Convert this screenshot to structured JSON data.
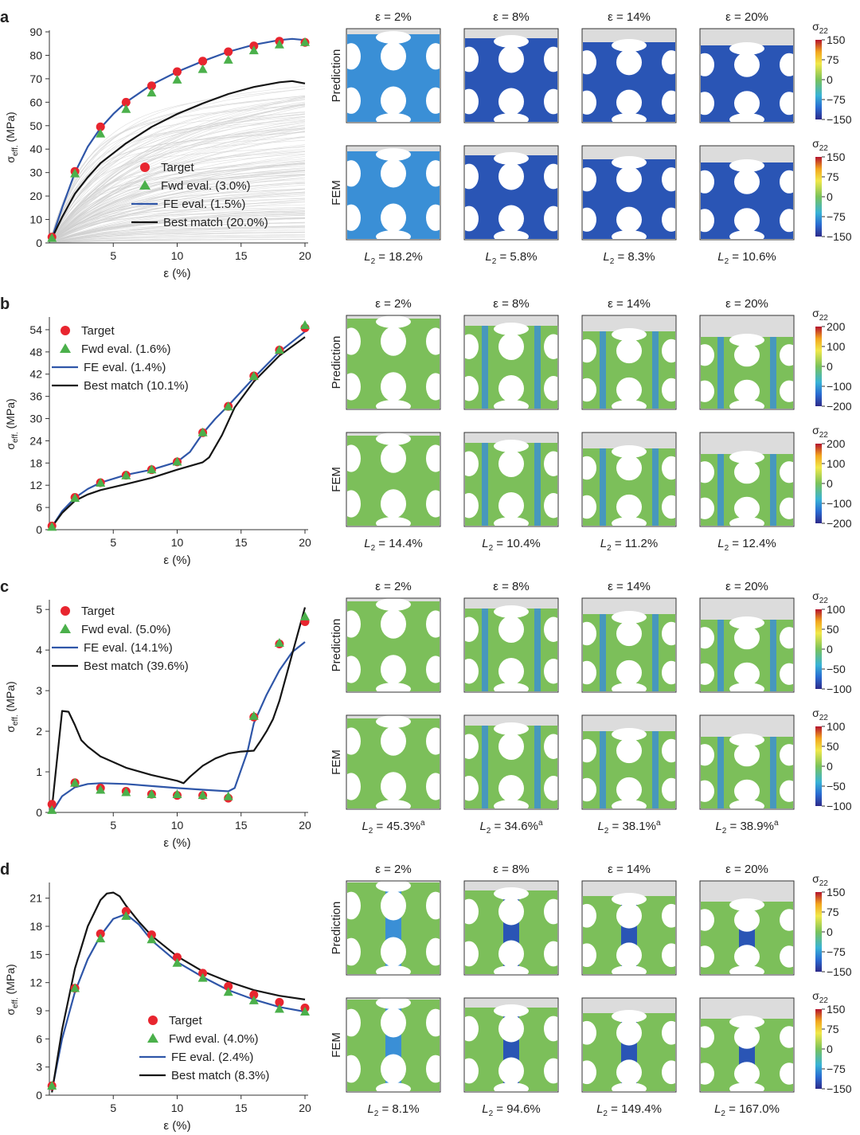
{
  "figure": {
    "strain_headers": [
      "ε = 2%",
      "ε = 8%",
      "ε = 14%",
      "ε = 20%"
    ],
    "strains": [
      2,
      8,
      14,
      20
    ],
    "row_labels": [
      "Prediction",
      "FEM"
    ],
    "colorbar_title": "σ22",
    "x_label": "ε (%)",
    "y_label": "σeff. (MPa)"
  },
  "colors": {
    "target": "#e8252f",
    "fwd": "#4bb04b",
    "fe": "#2f56a8",
    "best": "#151515",
    "background_curves": "#cfcfcf",
    "lattice_green": "#7cbf5a",
    "lattice_blue": "#3a8fd6",
    "lattice_dark": "#2a55b5",
    "compression_plate": "#dcdcdc"
  },
  "panels": [
    {
      "label": "a",
      "l2": [
        "18.2%",
        "5.8%",
        "8.3%",
        "10.6%"
      ],
      "l2_note": "",
      "colorbar_ticks": [
        "150",
        "75",
        "0",
        "−75",
        "−150"
      ],
      "stress_theme": "blue",
      "compression": [
        0.06,
        0.1,
        0.14,
        0.18
      ]
    },
    {
      "label": "b",
      "l2": [
        "14.4%",
        "10.4%",
        "11.2%",
        "12.4%"
      ],
      "l2_note": "",
      "colorbar_ticks": [
        "200",
        "100",
        "0",
        "−100",
        "−200"
      ],
      "stress_theme": "green",
      "compression": [
        0.03,
        0.11,
        0.17,
        0.23
      ]
    },
    {
      "label": "c",
      "l2": [
        "45.3%",
        "34.6%",
        "38.1%",
        "38.9%"
      ],
      "l2_note": "a",
      "colorbar_ticks": [
        "100",
        "50",
        "0",
        "−50",
        "−100"
      ],
      "stress_theme": "green",
      "compression": [
        0.03,
        0.11,
        0.17,
        0.23
      ]
    },
    {
      "label": "d",
      "l2": [
        "8.1%",
        "94.6%",
        "149.4%",
        "167.0%"
      ],
      "l2_note": "",
      "colorbar_ticks": [
        "150",
        "75",
        "0",
        "−75",
        "−150"
      ],
      "stress_theme": "mixed",
      "compression": [
        0.02,
        0.1,
        0.16,
        0.22
      ]
    }
  ],
  "chart_data": [
    {
      "type": "line",
      "panel": "a",
      "xlabel": "ε (%)",
      "ylabel": "σeff. (MPa)",
      "xlim": [
        0,
        20
      ],
      "ylim": [
        0,
        90
      ],
      "xticks": [
        5,
        10,
        15,
        20
      ],
      "xtick_labels": [
        "5",
        "10",
        "15",
        "20"
      ],
      "yticks": [
        0,
        10,
        20,
        30,
        40,
        50,
        60,
        70,
        80,
        90
      ],
      "ytick_labels": [
        "0",
        "10",
        "20",
        "30",
        "40",
        "50",
        "60",
        "70",
        "80",
        "90"
      ],
      "background_curves": true,
      "legend_position": "center-right",
      "series": [
        {
          "name": "Target",
          "kind": "circle",
          "x": [
            0.2,
            2,
            4,
            6,
            8,
            10,
            12,
            14,
            16,
            18,
            20
          ],
          "y": [
            2.5,
            30.5,
            49.5,
            60,
            67,
            73,
            77.5,
            81.5,
            84,
            86,
            85.5
          ]
        },
        {
          "name": "Fwd eval. (3.0%)",
          "kind": "triangle",
          "x": [
            0.2,
            2,
            4,
            6,
            8,
            10,
            12,
            14,
            16,
            18,
            20
          ],
          "y": [
            2.5,
            30,
            47,
            57.5,
            64.5,
            70,
            74.5,
            78.5,
            82.5,
            85,
            86
          ]
        },
        {
          "name": "FE eval. (1.5%)",
          "kind": "line",
          "x": [
            0.2,
            1,
            2,
            3,
            4,
            5,
            6,
            8,
            10,
            12,
            14,
            16,
            18,
            19,
            20
          ],
          "y": [
            2,
            15,
            30,
            41,
            49,
            55,
            60,
            67.5,
            73,
            77.5,
            81.5,
            84.5,
            86.5,
            87,
            86.5
          ]
        },
        {
          "name": "Best match (20.0%)",
          "kind": "line",
          "x": [
            0.2,
            1,
            2,
            3,
            4,
            6,
            8,
            10,
            12,
            14,
            16,
            18,
            19,
            20
          ],
          "y": [
            2,
            11,
            21,
            28,
            34,
            42.5,
            49.5,
            55,
            59.5,
            63.5,
            66.5,
            68.5,
            69,
            68
          ]
        }
      ]
    },
    {
      "type": "line",
      "panel": "b",
      "xlabel": "ε (%)",
      "ylabel": "σeff. (MPa)",
      "xlim": [
        0,
        20
      ],
      "ylim": [
        0,
        57
      ],
      "xticks": [
        5,
        10,
        15,
        20
      ],
      "xtick_labels": [
        "5",
        "10",
        "15",
        "20"
      ],
      "yticks": [
        0,
        6,
        12,
        18,
        24,
        30,
        36,
        42,
        48,
        54
      ],
      "ytick_labels": [
        "0",
        "6",
        "12",
        "18",
        "24",
        "30",
        "36",
        "42",
        "48",
        "54"
      ],
      "background_curves": false,
      "legend_position": "top-left",
      "series": [
        {
          "name": "Target",
          "kind": "circle",
          "x": [
            0.2,
            2,
            4,
            6,
            8,
            10,
            12,
            14,
            16,
            18,
            20
          ],
          "y": [
            1,
            8.7,
            12.7,
            14.7,
            16.2,
            18.3,
            26.2,
            33.3,
            41.5,
            48.5,
            54.5
          ]
        },
        {
          "name": "Fwd eval. (1.6%)",
          "kind": "triangle",
          "x": [
            0.2,
            2,
            4,
            6,
            8,
            10,
            12,
            14,
            16,
            18,
            20
          ],
          "y": [
            1,
            8.8,
            12.9,
            14.9,
            16.5,
            18.6,
            26.5,
            33.5,
            41.7,
            48.8,
            55.5
          ]
        },
        {
          "name": "FE eval. (1.4%)",
          "kind": "line",
          "x": [
            0.2,
            1,
            2,
            3,
            4,
            6,
            8,
            10,
            11,
            12,
            13,
            14,
            16,
            18,
            20
          ],
          "y": [
            0.8,
            5,
            8.6,
            11,
            12.7,
            14.8,
            16.2,
            18.3,
            21,
            26,
            30,
            33.5,
            41,
            48,
            53.5
          ]
        },
        {
          "name": "Best match (10.1%)",
          "kind": "line",
          "x": [
            0.2,
            1,
            2,
            3,
            4,
            6,
            8,
            10,
            12,
            12.5,
            13.5,
            14.5,
            16,
            18,
            20
          ],
          "y": [
            0.8,
            4.5,
            7.8,
            9.5,
            10.7,
            12.3,
            14,
            16.2,
            18.2,
            19.5,
            25.5,
            33,
            40,
            47,
            52
          ]
        }
      ]
    },
    {
      "type": "line",
      "panel": "c",
      "xlabel": "ε (%)",
      "ylabel": "σeff. (MPa)",
      "xlim": [
        0,
        20
      ],
      "ylim": [
        0,
        5.2
      ],
      "xticks": [
        5,
        10,
        15,
        20
      ],
      "xtick_labels": [
        "5",
        "10",
        "15",
        "20"
      ],
      "yticks": [
        0,
        1,
        2,
        3,
        4,
        5
      ],
      "ytick_labels": [
        "0",
        "1",
        "2",
        "3",
        "4",
        "5"
      ],
      "background_curves": false,
      "legend_position": "top-left",
      "series": [
        {
          "name": "Target",
          "kind": "circle",
          "x": [
            0.2,
            2,
            4,
            6,
            8,
            10,
            12,
            14,
            16,
            18,
            20
          ],
          "y": [
            0.2,
            0.73,
            0.6,
            0.52,
            0.45,
            0.42,
            0.42,
            0.35,
            2.35,
            4.15,
            4.7
          ]
        },
        {
          "name": "Fwd eval. (5.0%)",
          "kind": "triangle",
          "x": [
            0.2,
            2,
            4,
            6,
            8,
            10,
            12,
            14,
            16,
            18,
            20
          ],
          "y": [
            0.08,
            0.75,
            0.58,
            0.52,
            0.47,
            0.47,
            0.45,
            0.42,
            2.4,
            4.2,
            4.85
          ]
        },
        {
          "name": "FE eval. (14.1%)",
          "kind": "line",
          "x": [
            0.2,
            1,
            2,
            3,
            4,
            6,
            8,
            10,
            12,
            14,
            14.5,
            15.5,
            16,
            17,
            18,
            19,
            20
          ],
          "y": [
            0,
            0.4,
            0.62,
            0.7,
            0.72,
            0.7,
            0.65,
            0.6,
            0.56,
            0.52,
            0.6,
            1.5,
            2.2,
            2.9,
            3.5,
            3.95,
            4.2
          ]
        },
        {
          "name": "Best match (39.6%)",
          "kind": "line",
          "x": [
            0.2,
            1,
            1.5,
            2,
            2.5,
            3,
            4,
            6,
            8,
            10,
            10.5,
            11,
            12,
            13,
            14,
            15,
            16,
            16.5,
            17,
            17.5,
            18,
            19,
            20
          ],
          "y": [
            0.1,
            2.5,
            2.48,
            2.15,
            1.78,
            1.62,
            1.38,
            1.1,
            0.92,
            0.78,
            0.72,
            0.88,
            1.15,
            1.33,
            1.45,
            1.5,
            1.52,
            1.75,
            2.0,
            2.3,
            2.75,
            3.9,
            5.05
          ]
        }
      ]
    },
    {
      "type": "line",
      "panel": "d",
      "xlabel": "ε (%)",
      "ylabel": "σeff. (MPa)",
      "xlim": [
        0,
        20
      ],
      "ylim": [
        0,
        22.5
      ],
      "xticks": [
        5,
        10,
        15,
        20
      ],
      "xtick_labels": [
        "5",
        "10",
        "15",
        "20"
      ],
      "yticks": [
        0,
        3,
        6,
        9,
        12,
        15,
        18,
        21
      ],
      "ytick_labels": [
        "0",
        "3",
        "6",
        "9",
        "12",
        "15",
        "18",
        "21"
      ],
      "background_curves": false,
      "legend_position": "bottom-center",
      "series": [
        {
          "name": "Target",
          "kind": "circle",
          "x": [
            0.2,
            2,
            4,
            6,
            8,
            10,
            12,
            14,
            16,
            18,
            20
          ],
          "y": [
            1.0,
            11.4,
            17.2,
            19.6,
            17.1,
            14.7,
            13.0,
            11.6,
            10.7,
            9.9,
            9.3
          ]
        },
        {
          "name": "Fwd eval. (4.0%)",
          "kind": "triangle",
          "x": [
            0.2,
            2,
            4,
            6,
            8,
            10,
            12,
            14,
            16,
            18,
            20
          ],
          "y": [
            1.1,
            11.5,
            16.8,
            19.2,
            16.7,
            14.2,
            12.6,
            11.1,
            10.2,
            9.3,
            9.0
          ]
        },
        {
          "name": "FE eval. (2.4%)",
          "kind": "line",
          "x": [
            0.2,
            1,
            2,
            3,
            4,
            5,
            6,
            7,
            8,
            10,
            12,
            14,
            16,
            18,
            20
          ],
          "y": [
            0.5,
            6,
            11,
            14.5,
            17,
            18.8,
            19.3,
            18.2,
            16.5,
            14.2,
            12.6,
            11.2,
            10.2,
            9.4,
            8.9
          ]
        },
        {
          "name": "Best match (8.3%)",
          "kind": "line",
          "x": [
            0.2,
            1,
            2,
            3,
            4,
            4.5,
            5,
            5.5,
            6,
            7,
            8,
            10,
            12,
            14,
            16,
            18,
            20
          ],
          "y": [
            0.3,
            7,
            13.5,
            18,
            20.8,
            21.5,
            21.6,
            21.2,
            20.2,
            18.5,
            17,
            14.8,
            13.2,
            12.1,
            11.2,
            10.6,
            10.2
          ]
        }
      ]
    }
  ]
}
